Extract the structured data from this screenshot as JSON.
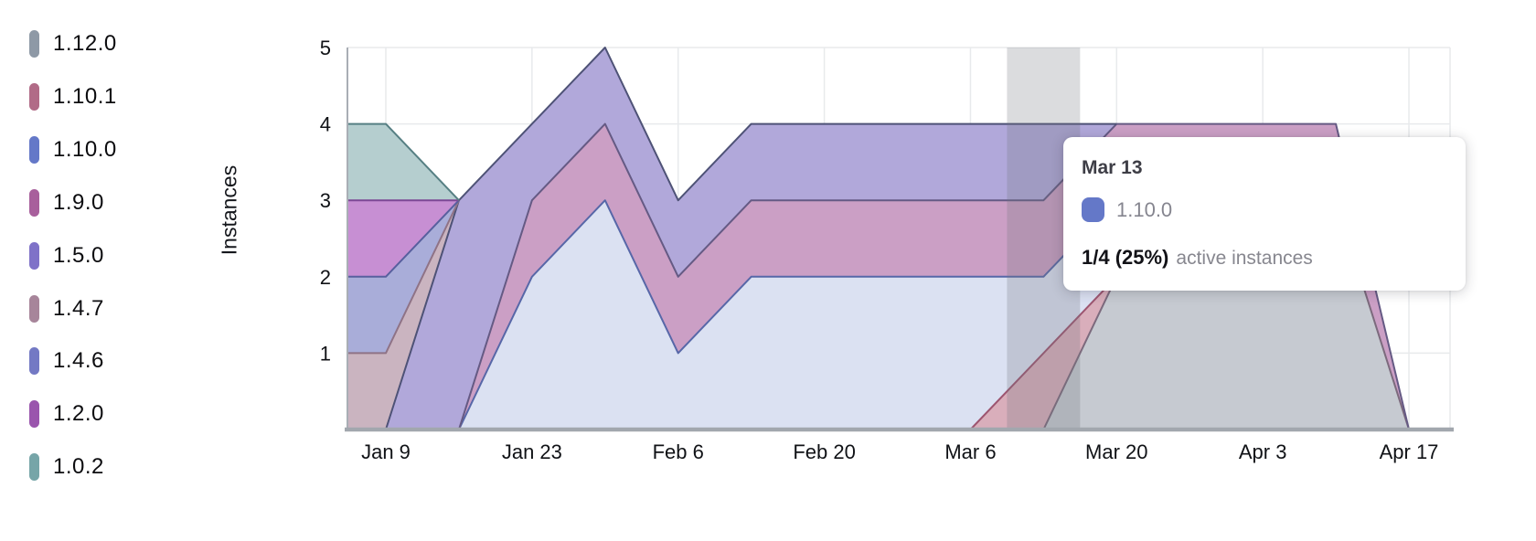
{
  "y_axis": {
    "title": "Instances",
    "tick_labels": [
      "1",
      "2",
      "3",
      "4",
      "5"
    ]
  },
  "x_axis": {
    "tick_labels": [
      "Jan 9",
      "Jan 23",
      "Feb 6",
      "Feb 20",
      "Mar 6",
      "Mar 20",
      "Apr 3",
      "Apr 17"
    ]
  },
  "tooltip": {
    "date": "Mar 13",
    "series_label": "1.10.0",
    "swatch_color": "#6478c8",
    "value_text": "1/4 (25%)",
    "value_suffix": "active instances"
  },
  "chart_data": {
    "type": "area",
    "stacked": true,
    "title": "",
    "xlabel": "",
    "ylabel": "Instances",
    "ylim": [
      0,
      5
    ],
    "grid": true,
    "legend_position": "left",
    "highlighted_x": "Mar 13",
    "x": [
      "Jan 2",
      "Jan 9",
      "Jan 16",
      "Jan 23",
      "Jan 30",
      "Feb 6",
      "Feb 13",
      "Feb 20",
      "Feb 27",
      "Mar 6",
      "Mar 13",
      "Mar 20",
      "Mar 27",
      "Apr 3",
      "Apr 10",
      "Apr 17"
    ],
    "x_tick_labels": [
      "Jan 9",
      "Jan 23",
      "Feb 6",
      "Feb 20",
      "Mar 6",
      "Mar 20",
      "Apr 3",
      "Apr 17"
    ],
    "series_note": "listed bottom-to-top of stack; legend shows same order top-to-bottom",
    "series": [
      {
        "name": "1.12.0",
        "values": [
          0,
          0,
          0,
          0,
          0,
          0,
          0,
          0,
          0,
          0,
          0,
          2,
          3,
          3,
          3,
          0
        ],
        "fill": "#c6cad1",
        "line": "#7c6a7d",
        "marker": "#8e99a6"
      },
      {
        "name": "1.10.1",
        "values": [
          0,
          0,
          0,
          0,
          0,
          0,
          0,
          0,
          0,
          0,
          1,
          0,
          0,
          0,
          0,
          0
        ],
        "fill": "#d9aebb",
        "line": "#9d5570",
        "marker": "#b16b87"
      },
      {
        "name": "1.10.0",
        "values": [
          0,
          0,
          0,
          2,
          3,
          1,
          2,
          2,
          2,
          2,
          1,
          1,
          0,
          0,
          0,
          0
        ],
        "fill": "#dbe1f2",
        "line": "#5767a8",
        "marker": "#6478c8"
      },
      {
        "name": "1.9.0",
        "values": [
          0,
          0,
          0,
          1,
          1,
          1,
          1,
          1,
          1,
          1,
          1,
          1,
          1,
          1,
          1,
          0
        ],
        "fill": "#cb9fc5",
        "line": "#655a84",
        "marker": "#a85f9c"
      },
      {
        "name": "1.5.0",
        "values": [
          0,
          0,
          3,
          1,
          1,
          1,
          1,
          1,
          1,
          1,
          1,
          0,
          0,
          0,
          0,
          0
        ],
        "fill": "#b1a8da",
        "line": "#4e5276",
        "marker": "#7f72c8"
      },
      {
        "name": "1.4.7",
        "values": [
          1,
          1,
          0,
          0,
          0,
          0,
          0,
          0,
          0,
          0,
          0,
          0,
          0,
          0,
          0,
          0
        ],
        "fill": "#cab4c0",
        "line": "#8f7386",
        "marker": "#a7859a"
      },
      {
        "name": "1.4.6",
        "values": [
          1,
          1,
          0,
          0,
          0,
          0,
          0,
          0,
          0,
          0,
          0,
          0,
          0,
          0,
          0,
          0
        ],
        "fill": "#a9add9",
        "line": "#585f9e",
        "marker": "#7379c4"
      },
      {
        "name": "1.2.0",
        "values": [
          1,
          1,
          0,
          0,
          0,
          0,
          0,
          0,
          0,
          0,
          0,
          0,
          0,
          0,
          0,
          0
        ],
        "fill": "#c78fd3",
        "line": "#7d4796",
        "marker": "#9a55ad"
      },
      {
        "name": "1.0.2",
        "values": [
          1,
          1,
          0,
          0,
          0,
          0,
          0,
          0,
          0,
          0,
          0,
          0,
          0,
          0,
          0,
          0
        ],
        "fill": "#b5cecf",
        "line": "#567f83",
        "marker": "#76a5a8"
      }
    ],
    "colors": {
      "grid_line": "#e8eaec",
      "axis_line": "#a9aeb5",
      "baseline": "#a2a7ae",
      "highlight_band": "rgba(110,115,125,0.25)",
      "tick_text": "#101216"
    }
  }
}
